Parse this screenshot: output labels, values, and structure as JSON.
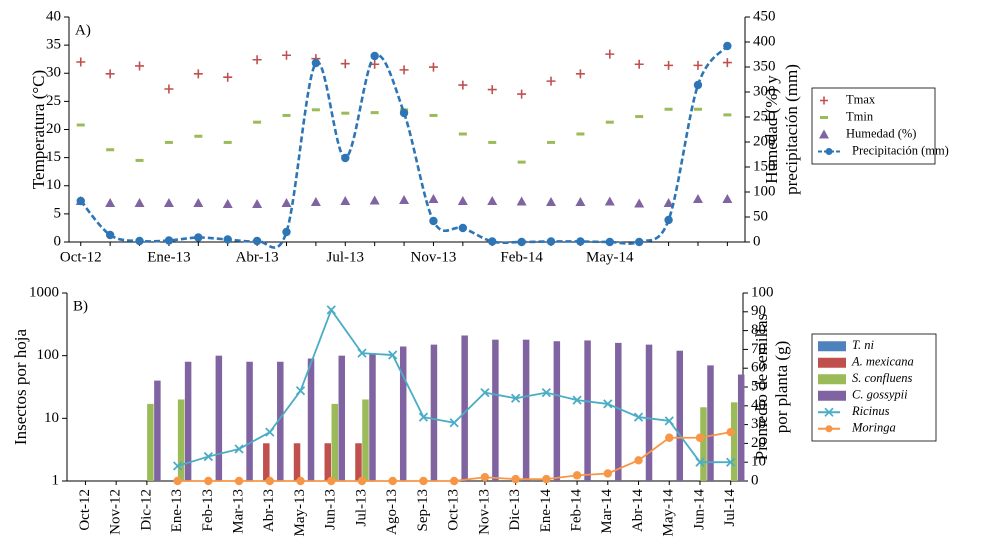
{
  "chart_data": [
    {
      "type": "combo",
      "label": "A)",
      "ylabel": "Temperatura (°C)",
      "y2label": [
        "Humedad (%) y",
        "precipitación (mm)"
      ],
      "categories": [
        "Oct-12",
        null,
        null,
        "Ene-13",
        null,
        null,
        "Abr-13",
        null,
        null,
        "Jul-13",
        null,
        null,
        "Nov-13",
        null,
        null,
        "Feb-14",
        null,
        null,
        "May-14",
        null,
        null,
        null,
        null
      ],
      "ylim": [
        0,
        40
      ],
      "yticks": [
        0,
        5,
        10,
        15,
        20,
        25,
        30,
        35,
        40
      ],
      "y2lim": [
        0,
        450
      ],
      "y2ticks": [
        0,
        50,
        100,
        150,
        200,
        250,
        300,
        350,
        400,
        450
      ],
      "legend": "right",
      "grid": false,
      "series": [
        {
          "name": "Tmax",
          "type": "scatter",
          "marker": "plus",
          "color": "#c0504d",
          "values": [
            32,
            29.9,
            31.3,
            27.2,
            29.9,
            29.3,
            32.4,
            33.2,
            32.6,
            31.7,
            31.6,
            30.6,
            31.1,
            27.9,
            27.1,
            26.3,
            28.6,
            29.9,
            33.4,
            31.6,
            31.4,
            31.4,
            31.9
          ]
        },
        {
          "name": "Tmin",
          "type": "scatter",
          "marker": "dash",
          "color": "#9bbb59",
          "values": [
            20.8,
            16.4,
            14.5,
            17.7,
            18.8,
            17.7,
            21.3,
            22.5,
            23.5,
            22.9,
            23,
            23.5,
            22.5,
            19.2,
            17.7,
            14.2,
            17.7,
            19.2,
            21.3,
            22.3,
            23.6,
            23.6,
            22.6
          ]
        },
        {
          "name": "Humedad (%)",
          "type": "scatter",
          "marker": "triangle",
          "color": "#8064a2",
          "axis": "y2",
          "values": [
            82,
            78,
            78,
            78,
            78,
            76,
            76,
            78,
            80,
            82,
            83,
            84,
            86,
            82,
            82,
            81,
            80,
            80,
            81,
            77,
            78,
            86,
            86
          ]
        },
        {
          "name": "Precipitación (mm)",
          "type": "line",
          "marker": "circle",
          "color": "#2e75b6",
          "dashed": true,
          "smooth": true,
          "axis": "y2",
          "values": [
            82,
            14,
            2,
            3,
            9,
            5,
            2,
            20,
            358,
            168,
            372,
            258,
            42,
            28,
            1,
            0,
            1,
            1,
            0,
            0,
            44,
            314,
            392
          ]
        }
      ]
    },
    {
      "type": "combo",
      "label": "B)",
      "ylabel": "Insectos por hoja",
      "y2label": [
        "Promedio de semillas",
        "por planta (g)"
      ],
      "categories": [
        "Oct-12",
        "Nov-12",
        "Dic-12",
        "Ene-13",
        "Feb-13",
        "Mar-13",
        "Abr-13",
        "May-13",
        "Jun-13",
        "Jul-13",
        "Ago-13",
        "Sep-13",
        "Oct-13",
        "Nov-13",
        "Dic-13",
        "Ene-14",
        "Feb-14",
        "Mar-14",
        "Abr-14",
        "May-14",
        "Jun-14",
        "Jul-14"
      ],
      "ylim": [
        1,
        1000
      ],
      "yticks": [
        1,
        10,
        100,
        1000
      ],
      "ylog": true,
      "y2lim": [
        0,
        100
      ],
      "y2ticks": [
        0,
        10,
        20,
        30,
        40,
        50,
        60,
        70,
        80,
        90,
        100
      ],
      "legend": "right",
      "legend_italic": true,
      "grid": false,
      "series": [
        {
          "name": "T. ni",
          "type": "bar",
          "color": "#4f81bd",
          "values": [
            null,
            null,
            null,
            null,
            null,
            null,
            null,
            null,
            null,
            null,
            null,
            null,
            null,
            null,
            null,
            null,
            null,
            null,
            null,
            null,
            null,
            null
          ]
        },
        {
          "name": "A. mexicana",
          "type": "bar",
          "color": "#c0504d",
          "values": [
            null,
            null,
            null,
            null,
            null,
            null,
            4,
            4,
            4,
            4,
            null,
            null,
            null,
            null,
            null,
            null,
            null,
            null,
            null,
            null,
            null,
            null
          ]
        },
        {
          "name": "S. confluens",
          "type": "bar",
          "color": "#9bbb59",
          "values": [
            null,
            null,
            17,
            20,
            null,
            null,
            null,
            null,
            17,
            20,
            null,
            null,
            null,
            null,
            null,
            null,
            null,
            null,
            null,
            null,
            15,
            18
          ]
        },
        {
          "name": "C. gossypii",
          "type": "bar",
          "color": "#8064a2",
          "values": [
            null,
            null,
            40,
            80,
            100,
            80,
            80,
            90,
            100,
            110,
            140,
            150,
            210,
            180,
            180,
            170,
            175,
            160,
            150,
            120,
            70,
            50
          ]
        },
        {
          "name": "Ricinus",
          "type": "line",
          "marker": "x",
          "color": "#4bacc6",
          "axis": "y2",
          "values": [
            null,
            null,
            null,
            8,
            13,
            17,
            26,
            48,
            91,
            68,
            67,
            34,
            31,
            47,
            44,
            47,
            43,
            41,
            34,
            32,
            10,
            10
          ]
        },
        {
          "name": "Moringa",
          "type": "line",
          "marker": "circle",
          "color": "#f79646",
          "axis": "y2",
          "values": [
            null,
            null,
            null,
            0,
            0,
            0,
            0,
            0,
            0,
            0,
            0,
            0,
            0,
            2,
            1,
            1,
            3,
            4,
            11,
            23,
            23,
            26
          ]
        }
      ]
    }
  ]
}
